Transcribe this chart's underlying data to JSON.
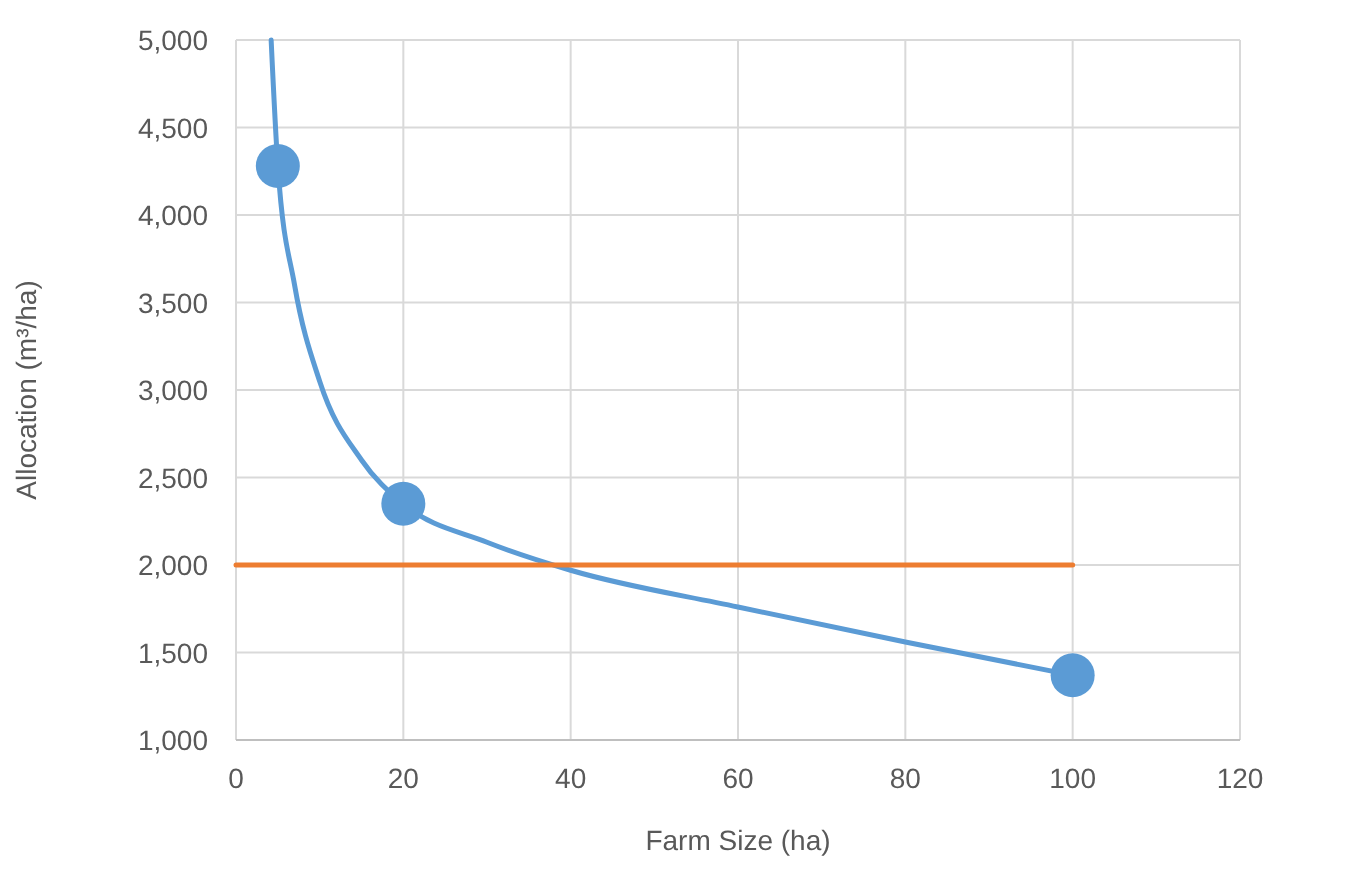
{
  "chart_data": {
    "type": "scatter",
    "xlabel": "Farm Size (ha)",
    "ylabel": "Allocation (m³/ha)",
    "xlim": [
      0,
      120
    ],
    "xticks": [
      0,
      20,
      40,
      60,
      80,
      100,
      {
        "value": 120,
        "label": "120"
      }
    ],
    "ylim": [
      1000,
      5000
    ],
    "yticks": [
      {
        "value": 1000,
        "label": "1,000"
      },
      {
        "value": 1500,
        "label": "1,500"
      },
      {
        "value": 2000,
        "label": "2,000"
      },
      {
        "value": 2500,
        "label": "2,500"
      },
      {
        "value": 3000,
        "label": "3,000"
      },
      {
        "value": 3500,
        "label": "3,500"
      },
      {
        "value": 4000,
        "label": "4,000"
      },
      {
        "value": 4500,
        "label": "4,500"
      },
      {
        "value": 5000,
        "label": "5,000"
      }
    ],
    "grid": true,
    "series": [
      {
        "type": "line",
        "color": "#5b9bd5",
        "marker": "none",
        "x": [
          4.2,
          5,
          7,
          10,
          15,
          20,
          30,
          40,
          60,
          80,
          100
        ],
        "values": [
          5000,
          4280,
          3600,
          3050,
          2600,
          2350,
          2130,
          1970,
          1760,
          1560,
          1370
        ]
      },
      {
        "type": "line",
        "color": "#ed7d31",
        "marker": "none",
        "x": [
          0,
          100
        ],
        "values": [
          2000,
          2000
        ]
      },
      {
        "color": "#5b9bd5",
        "marker": "circle",
        "x": [
          5,
          20,
          100
        ],
        "values": [
          4280,
          2350,
          1370
        ]
      }
    ]
  }
}
